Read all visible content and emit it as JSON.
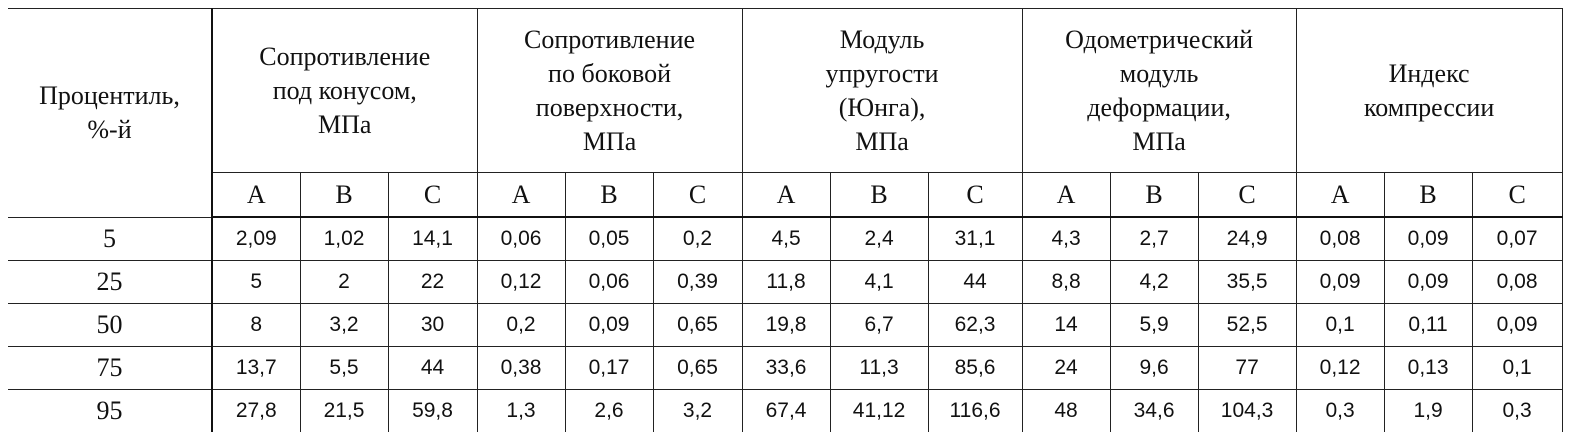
{
  "table": {
    "corner": [
      "Процентиль,",
      "%-й"
    ],
    "groups": [
      {
        "lines": [
          "Сопротивление",
          "под конусом,",
          "МПа"
        ],
        "subcolumns": [
          "A",
          "B",
          "C"
        ]
      },
      {
        "lines": [
          "Сопротивление",
          "по боковой",
          "поверхности,",
          "МПа"
        ],
        "subcolumns": [
          "A",
          "B",
          "C"
        ]
      },
      {
        "lines": [
          "Модуль",
          "упругости",
          "(Юнга),",
          "МПа"
        ],
        "subcolumns": [
          "A",
          "B",
          "C"
        ]
      },
      {
        "lines": [
          "Одометрический",
          "модуль",
          "деформации,",
          "МПа"
        ],
        "subcolumns": [
          "A",
          "B",
          "C"
        ]
      },
      {
        "lines": [
          "Индекс",
          "компрессии"
        ],
        "subcolumns": [
          "A",
          "B",
          "C"
        ]
      }
    ],
    "rows": [
      {
        "percentile": "5",
        "values": [
          "2,09",
          "1,02",
          "14,1",
          "0,06",
          "0,05",
          "0,2",
          "4,5",
          "2,4",
          "31,1",
          "4,3",
          "2,7",
          "24,9",
          "0,08",
          "0,09",
          "0,07"
        ]
      },
      {
        "percentile": "25",
        "values": [
          "5",
          "2",
          "22",
          "0,12",
          "0,06",
          "0,39",
          "11,8",
          "4,1",
          "44",
          "8,8",
          "4,2",
          "35,5",
          "0,09",
          "0,09",
          "0,08"
        ]
      },
      {
        "percentile": "50",
        "values": [
          "8",
          "3,2",
          "30",
          "0,2",
          "0,09",
          "0,65",
          "19,8",
          "6,7",
          "62,3",
          "14",
          "5,9",
          "52,5",
          "0,1",
          "0,11",
          "0,09"
        ]
      },
      {
        "percentile": "75",
        "values": [
          "13,7",
          "5,5",
          "44",
          "0,38",
          "0,17",
          "0,65",
          "33,6",
          "11,3",
          "85,6",
          "24",
          "9,6",
          "77",
          "0,12",
          "0,13",
          "0,1"
        ]
      },
      {
        "percentile": "95",
        "values": [
          "27,8",
          "21,5",
          "59,8",
          "1,3",
          "2,6",
          "3,2",
          "67,4",
          "41,12",
          "116,6",
          "48",
          "34,6",
          "104,3",
          "0,3",
          "1,9",
          "0,3"
        ]
      }
    ]
  }
}
